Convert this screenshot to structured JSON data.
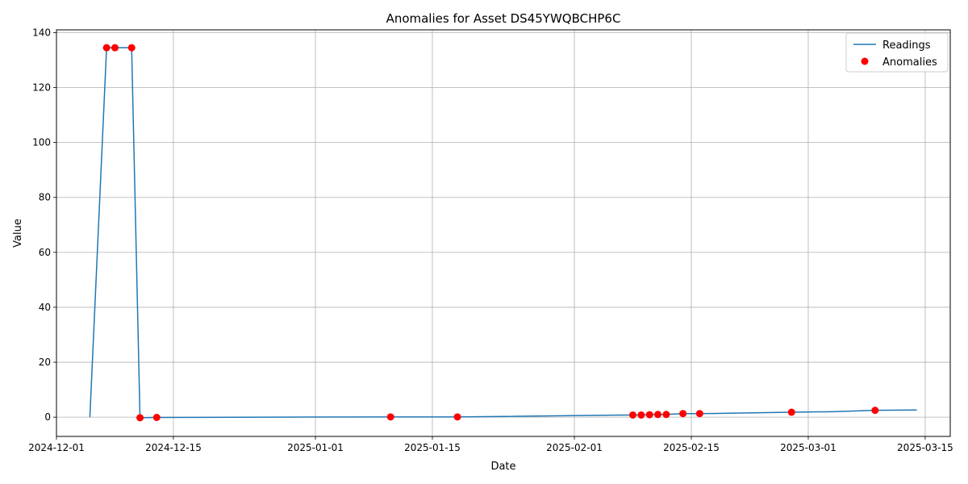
{
  "chart_data": {
    "type": "line",
    "title": "Anomalies for Asset DS45YWQBCHP6C",
    "xlabel": "Date",
    "ylabel": "Value",
    "xlim": [
      "2024-12-01",
      "2025-03-18"
    ],
    "ylim": [
      -7,
      141
    ],
    "x_ticks": [
      "2024-12-01",
      "2024-12-15",
      "2025-01-01",
      "2025-01-15",
      "2025-02-01",
      "2025-02-15",
      "2025-03-01",
      "2025-03-15"
    ],
    "y_ticks": [
      0,
      20,
      40,
      60,
      80,
      100,
      120,
      140
    ],
    "grid": true,
    "legend": {
      "placement": "top-right",
      "entries": [
        "Readings",
        "Anomalies"
      ]
    },
    "colors": {
      "readings": "#1f77b4",
      "anomalies": "#ff0000",
      "grid": "#b0b0b0"
    },
    "series": [
      {
        "name": "Readings",
        "kind": "line",
        "points": [
          [
            "2024-12-05",
            0.0
          ],
          [
            "2024-12-07",
            134.5
          ],
          [
            "2024-12-08",
            134.5
          ],
          [
            "2024-12-10",
            134.5
          ],
          [
            "2024-12-11",
            -0.2
          ],
          [
            "2024-12-13",
            -0.1
          ],
          [
            "2025-01-10",
            0.1
          ],
          [
            "2025-01-18",
            0.1
          ],
          [
            "2025-02-08",
            0.8
          ],
          [
            "2025-02-09",
            0.8
          ],
          [
            "2025-02-10",
            0.9
          ],
          [
            "2025-02-11",
            1.0
          ],
          [
            "2025-02-12",
            1.0
          ],
          [
            "2025-02-14",
            1.3
          ],
          [
            "2025-02-16",
            1.3
          ],
          [
            "2025-02-21",
            1.5
          ],
          [
            "2025-02-27",
            1.8
          ],
          [
            "2025-03-04",
            2.0
          ],
          [
            "2025-03-09",
            2.5
          ],
          [
            "2025-03-14",
            2.6
          ]
        ]
      },
      {
        "name": "Anomalies",
        "kind": "scatter",
        "points": [
          [
            "2024-12-07",
            134.5
          ],
          [
            "2024-12-08",
            134.5
          ],
          [
            "2024-12-10",
            134.5
          ],
          [
            "2024-12-11",
            -0.2
          ],
          [
            "2024-12-13",
            -0.1
          ],
          [
            "2025-01-10",
            0.1
          ],
          [
            "2025-01-18",
            0.1
          ],
          [
            "2025-02-08",
            0.8
          ],
          [
            "2025-02-09",
            0.8
          ],
          [
            "2025-02-10",
            0.9
          ],
          [
            "2025-02-11",
            1.0
          ],
          [
            "2025-02-12",
            1.0
          ],
          [
            "2025-02-14",
            1.3
          ],
          [
            "2025-02-16",
            1.3
          ],
          [
            "2025-02-27",
            1.8
          ],
          [
            "2025-03-09",
            2.5
          ]
        ]
      }
    ]
  }
}
